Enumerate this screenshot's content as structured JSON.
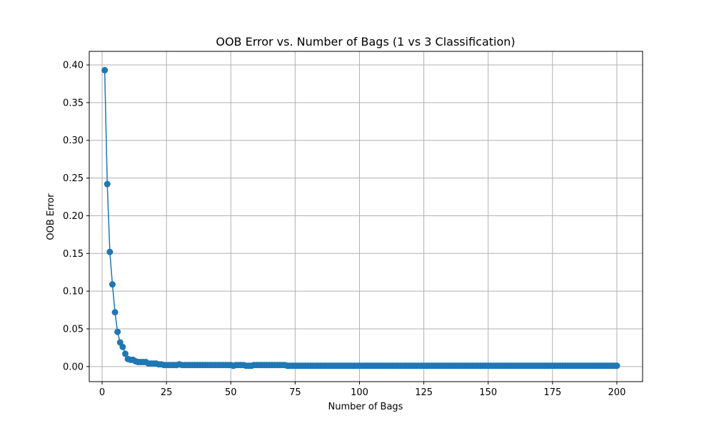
{
  "chart_data": {
    "type": "line",
    "title": "OOB Error vs. Number of Bags (1 vs 3 Classification)",
    "xlabel": "Number of Bags",
    "ylabel": "OOB Error",
    "xlim": [
      -5,
      210
    ],
    "ylim": [
      -0.02,
      0.418
    ],
    "xticks": [
      0,
      25,
      50,
      75,
      100,
      125,
      150,
      175,
      200
    ],
    "xtick_labels": [
      "0",
      "25",
      "50",
      "75",
      "100",
      "125",
      "150",
      "175",
      "200"
    ],
    "yticks": [
      0.0,
      0.05,
      0.1,
      0.15,
      0.2,
      0.25,
      0.3,
      0.35,
      0.4
    ],
    "ytick_labels": [
      "0.00",
      "0.05",
      "0.10",
      "0.15",
      "0.20",
      "0.25",
      "0.30",
      "0.35",
      "0.40"
    ],
    "grid": true,
    "marker": "circle",
    "line_color": "#1f77b4",
    "series": [
      {
        "x_start": 1,
        "x_end": 200,
        "values": [
          0.393,
          0.242,
          0.152,
          0.109,
          0.072,
          0.046,
          0.032,
          0.026,
          0.017,
          0.01,
          0.009,
          0.009,
          0.007,
          0.006,
          0.006,
          0.006,
          0.006,
          0.004,
          0.004,
          0.004,
          0.004,
          0.003,
          0.003,
          0.002,
          0.002,
          0.002,
          0.002,
          0.002,
          0.002,
          0.003,
          0.002,
          0.002,
          0.002,
          0.002,
          0.002,
          0.002,
          0.002,
          0.002,
          0.002,
          0.002,
          0.002,
          0.002,
          0.002,
          0.002,
          0.002,
          0.002,
          0.002,
          0.002,
          0.002,
          0.002,
          0.001,
          0.002,
          0.002,
          0.002,
          0.002,
          0.001,
          0.001,
          0.001,
          0.002,
          0.002,
          0.002,
          0.002,
          0.002,
          0.002,
          0.002,
          0.002,
          0.002,
          0.002,
          0.002,
          0.002,
          0.002,
          0.001,
          0.001,
          0.001,
          0.001,
          0.001,
          0.001,
          0.001,
          0.001,
          0.001,
          0.001,
          0.001,
          0.001,
          0.001,
          0.001,
          0.001,
          0.001,
          0.001,
          0.001,
          0.001,
          0.001,
          0.001,
          0.001,
          0.001,
          0.001,
          0.001,
          0.001,
          0.001,
          0.001,
          0.001,
          0.001,
          0.001,
          0.001,
          0.001,
          0.001,
          0.001,
          0.001,
          0.001,
          0.001,
          0.001,
          0.001,
          0.001,
          0.001,
          0.001,
          0.001,
          0.001,
          0.001,
          0.001,
          0.001,
          0.001,
          0.001,
          0.001,
          0.001,
          0.001,
          0.001,
          0.001,
          0.001,
          0.001,
          0.001,
          0.001,
          0.001,
          0.001,
          0.001,
          0.001,
          0.001,
          0.001,
          0.001,
          0.001,
          0.001,
          0.001,
          0.001,
          0.001,
          0.001,
          0.001,
          0.001,
          0.001,
          0.001,
          0.001,
          0.001,
          0.001,
          0.001,
          0.001,
          0.001,
          0.001,
          0.001,
          0.001,
          0.001,
          0.001,
          0.001,
          0.001,
          0.001,
          0.001,
          0.001,
          0.001,
          0.001,
          0.001,
          0.001,
          0.001,
          0.001,
          0.001,
          0.001,
          0.001,
          0.001,
          0.001,
          0.001,
          0.001,
          0.001,
          0.001,
          0.001,
          0.001,
          0.001,
          0.001,
          0.001,
          0.001,
          0.001,
          0.001,
          0.001,
          0.001,
          0.001,
          0.001,
          0.001,
          0.001,
          0.001,
          0.001,
          0.001,
          0.001,
          0.001,
          0.001,
          0.001,
          0.001
        ]
      }
    ]
  }
}
